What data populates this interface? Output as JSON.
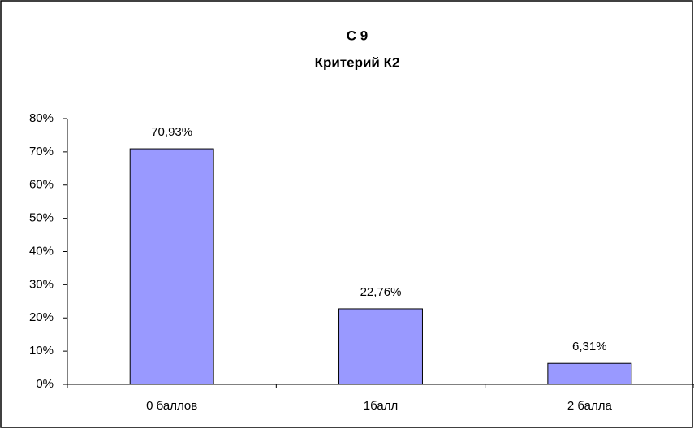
{
  "chart_data": {
    "type": "bar",
    "title": "С 9",
    "subtitle": "Критерий К2",
    "categories": [
      "0 баллов",
      "1балл",
      "2 балла"
    ],
    "values": [
      70.93,
      22.76,
      6.31
    ],
    "value_labels": [
      "70,93%",
      "22,76%",
      "6,31%"
    ],
    "color": "#9999ff",
    "ylim": [
      0,
      80
    ],
    "yticks": [
      {
        "value": 0,
        "label": "0%"
      },
      {
        "value": 10,
        "label": "10%"
      },
      {
        "value": 20,
        "label": "20%"
      },
      {
        "value": 30,
        "label": "30%"
      },
      {
        "value": 40,
        "label": "40%"
      },
      {
        "value": 50,
        "label": "50%"
      },
      {
        "value": 60,
        "label": "60%"
      },
      {
        "value": 70,
        "label": "70%"
      },
      {
        "value": 80,
        "label": "80%"
      }
    ],
    "grid": false
  }
}
